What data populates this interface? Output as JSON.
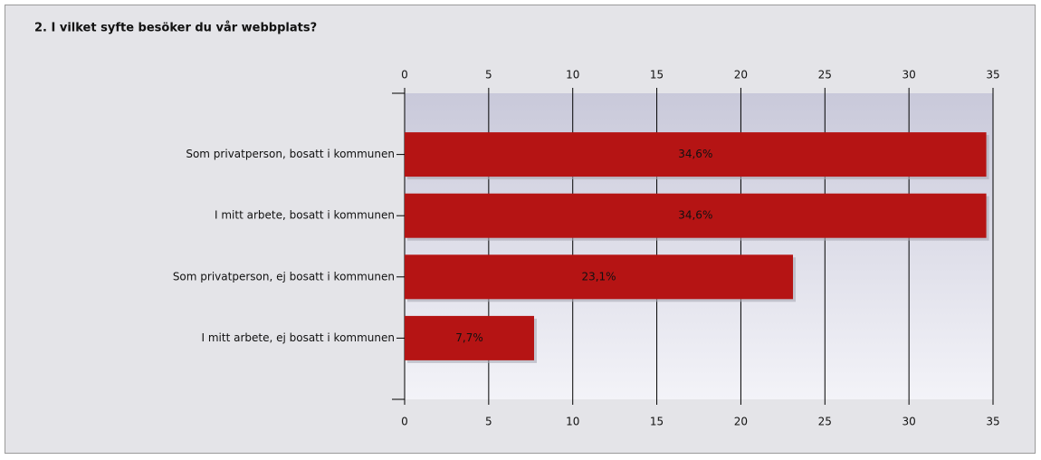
{
  "chart_data": {
    "type": "bar",
    "orientation": "horizontal",
    "title": "2. I vilket syfte besöker du vår webbplats?",
    "categories": [
      "Som privatperson, bosatt i kommunen",
      "I mitt arbete, bosatt i kommunen",
      "Som privatperson, ej bosatt i kommunen",
      "I mitt arbete, ej bosatt i kommunen"
    ],
    "values": [
      34.6,
      34.6,
      23.1,
      7.7
    ],
    "value_labels": [
      "34,6%",
      "34,6%",
      "23,1%",
      "7,7%"
    ],
    "color": "#b51414",
    "xlim": [
      0,
      35
    ],
    "xticks": [
      0,
      5,
      10,
      15,
      20,
      25,
      30,
      35
    ],
    "grid": true
  }
}
